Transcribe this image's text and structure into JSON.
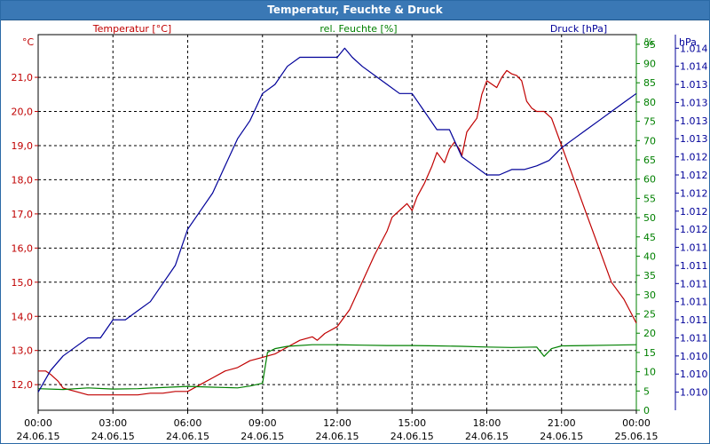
{
  "window": {
    "title": "Temperatur, Feuchte & Druck"
  },
  "chart_data": {
    "type": "line",
    "title": "Temperatur, Feuchte & Druck",
    "colors": {
      "temperature": "#c00000",
      "humidity": "#008000",
      "pressure": "#000099",
      "grid": "#000000",
      "axis": "#000000"
    },
    "axes": {
      "left": {
        "unit": "°C",
        "label": "Temperatur [°C]",
        "ylim": [
          11.25,
          22.25
        ],
        "ticks": [
          "12,0",
          "13,0",
          "14,0",
          "15,0",
          "16,0",
          "17,0",
          "18,0",
          "19,0",
          "20,0",
          "21,0"
        ],
        "tick_values": [
          12,
          13,
          14,
          15,
          16,
          17,
          18,
          19,
          20,
          21
        ]
      },
      "right1": {
        "unit": "%",
        "label": "rel. Feuchte [%]",
        "ylim": [
          0,
          97.5
        ],
        "ticks": [
          "0",
          "5",
          "10",
          "15",
          "20",
          "25",
          "30",
          "35",
          "40",
          "45",
          "50",
          "55",
          "60",
          "65",
          "70",
          "75",
          "80",
          "85",
          "90",
          "95"
        ],
        "tick_values": [
          0,
          5,
          10,
          15,
          20,
          25,
          30,
          35,
          40,
          45,
          50,
          55,
          60,
          65,
          70,
          75,
          80,
          85,
          90,
          95
        ]
      },
      "right2": {
        "unit": "hPa",
        "label": "Druck [hPa]",
        "ylim": [
          0,
          20.75
        ],
        "ticks": [
          "1.010",
          "1.010",
          "1.010",
          "1.011",
          "1.011",
          "1.011",
          "1.011",
          "1.011",
          "1.011",
          "1.012",
          "1.012",
          "1.012",
          "1.012",
          "1.012",
          "1.013",
          "1.013",
          "1.013",
          "1.013",
          "1.014",
          "1.014"
        ],
        "tick_values": [
          1,
          2,
          3,
          4,
          5,
          6,
          7,
          8,
          9,
          10,
          11,
          12,
          13,
          14,
          15,
          16,
          17,
          18,
          19,
          20
        ]
      }
    },
    "x": {
      "xlim": [
        0,
        24
      ],
      "ticks": [
        {
          "value": 0,
          "time": "00:00",
          "date": "24.06.15"
        },
        {
          "value": 3,
          "time": "03:00",
          "date": "24.06.15"
        },
        {
          "value": 6,
          "time": "06:00",
          "date": "24.06.15"
        },
        {
          "value": 9,
          "time": "09:00",
          "date": "24.06.15"
        },
        {
          "value": 12,
          "time": "12:00",
          "date": "24.06.15"
        },
        {
          "value": 15,
          "time": "15:00",
          "date": "24.06.15"
        },
        {
          "value": 18,
          "time": "18:00",
          "date": "24.06.15"
        },
        {
          "value": 21,
          "time": "21:00",
          "date": "24.06.15"
        },
        {
          "value": 24,
          "time": "00:00",
          "date": "25.06.15"
        }
      ]
    },
    "series": [
      {
        "name": "Temperatur [°C]",
        "axis": "left",
        "color": "#c00000",
        "x": [
          0,
          0.3,
          0.5,
          0.8,
          1.0,
          1.5,
          2.0,
          2.5,
          3.0,
          3.5,
          4.0,
          4.5,
          5.0,
          5.5,
          6.0,
          6.5,
          7.0,
          7.5,
          8.0,
          8.5,
          9.0,
          9.5,
          10.0,
          10.5,
          11.0,
          11.2,
          11.5,
          12.0,
          12.5,
          13.0,
          13.5,
          14.0,
          14.2,
          14.5,
          14.8,
          15.0,
          15.2,
          15.5,
          15.8,
          16.0,
          16.3,
          16.5,
          16.7,
          16.9,
          17.0,
          17.2,
          17.4,
          17.6,
          17.8,
          18.0,
          18.2,
          18.4,
          18.6,
          18.8,
          19.0,
          19.2,
          19.4,
          19.6,
          19.8,
          20.0,
          20.3,
          20.6,
          21.0,
          21.5,
          22.0,
          22.5,
          23.0,
          23.5,
          24.0
        ],
        "values": [
          12.4,
          12.4,
          12.3,
          12.1,
          11.9,
          11.8,
          11.7,
          11.7,
          11.7,
          11.7,
          11.7,
          11.75,
          11.75,
          11.8,
          11.8,
          12.0,
          12.2,
          12.4,
          12.5,
          12.7,
          12.8,
          12.9,
          13.1,
          13.3,
          13.4,
          13.3,
          13.5,
          13.7,
          14.2,
          15.0,
          15.8,
          16.5,
          16.9,
          17.1,
          17.3,
          17.1,
          17.5,
          17.9,
          18.4,
          18.8,
          18.5,
          18.9,
          19.1,
          18.9,
          18.7,
          19.4,
          19.6,
          19.8,
          20.5,
          20.9,
          20.8,
          20.7,
          21.0,
          21.2,
          21.1,
          21.05,
          20.9,
          20.3,
          20.1,
          20.0,
          20.0,
          19.8,
          19.0,
          18.0,
          17.0,
          16.0,
          15.0,
          14.5,
          13.8
        ]
      },
      {
        "name": "rel. Feuchte [%]",
        "axis": "right1",
        "color": "#008000",
        "x": [
          0,
          1,
          2,
          3,
          4,
          5,
          6,
          7,
          8,
          8.5,
          9.0,
          9.2,
          9.5,
          10,
          11,
          12,
          13,
          14,
          15,
          16,
          17,
          18,
          19,
          20,
          20.3,
          20.6,
          21,
          22,
          23,
          24
        ],
        "values": [
          5.6,
          5.4,
          5.8,
          5.5,
          5.6,
          5.9,
          6.2,
          6.0,
          5.8,
          6.3,
          7.0,
          15.0,
          16.0,
          16.6,
          17.0,
          17.0,
          16.9,
          16.8,
          16.8,
          16.7,
          16.6,
          16.4,
          16.3,
          16.4,
          14.0,
          16.0,
          16.7,
          16.8,
          16.9,
          17.0
        ]
      },
      {
        "name": "Druck [hPa]",
        "axis": "right2",
        "color": "#000099",
        "x": [
          0,
          0.5,
          1.0,
          1.5,
          2.0,
          2.5,
          3.0,
          3.5,
          4.0,
          4.5,
          5.0,
          5.5,
          6.0,
          6.5,
          7.0,
          7.5,
          8.0,
          8.5,
          9.0,
          9.5,
          10.0,
          10.5,
          11.0,
          11.5,
          12.0,
          12.3,
          12.6,
          13.0,
          13.5,
          14.0,
          14.5,
          15.0,
          15.5,
          16.0,
          16.5,
          17.0,
          17.5,
          18.0,
          18.5,
          19.0,
          19.5,
          20.0,
          20.5,
          21.0,
          21.5,
          22.0,
          22.5,
          23.0,
          23.5,
          24.0
        ],
        "values": [
          1.0,
          2.2,
          3.0,
          3.5,
          4.0,
          4.0,
          5.0,
          5.0,
          5.5,
          6.0,
          7.0,
          8.0,
          10.0,
          11.0,
          12.0,
          13.5,
          15.0,
          16.0,
          17.5,
          18.0,
          19.0,
          19.5,
          19.5,
          19.5,
          19.5,
          20.0,
          19.5,
          19.0,
          18.5,
          18.0,
          17.5,
          17.5,
          16.5,
          15.5,
          15.5,
          14.0,
          13.5,
          13.0,
          13.0,
          13.3,
          13.3,
          13.5,
          13.8,
          14.5,
          15.0,
          15.5,
          16.0,
          16.5,
          17.0,
          17.5
        ]
      }
    ]
  }
}
